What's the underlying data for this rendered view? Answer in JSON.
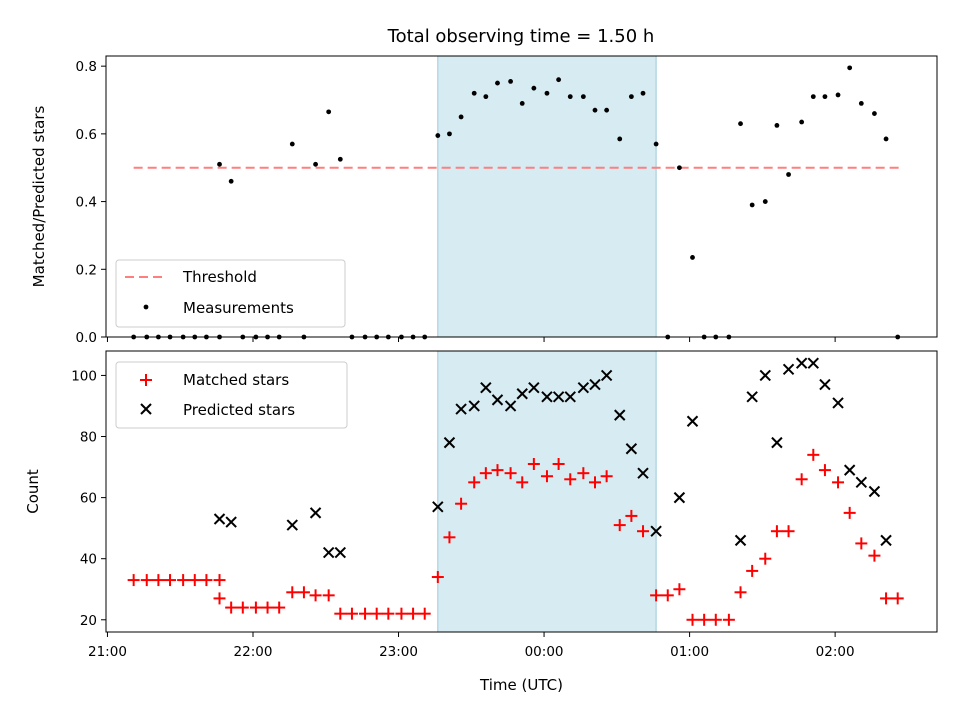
{
  "chart_data": {
    "title": "Total observing time = 1.50 h",
    "xlabel": "Time (UTC)",
    "x_tick_labels": [
      "21:00",
      "22:00",
      "23:00",
      "00:00",
      "01:00",
      "02:00"
    ],
    "x_tick_hours": [
      21,
      22,
      23,
      24,
      25,
      26
    ],
    "xlim": [
      20.99,
      26.7
    ],
    "highlight_span": {
      "from": 23.27,
      "to": 24.77,
      "color": "#add8e6"
    },
    "panels": [
      {
        "type": "scatter",
        "ylabel": "Matched/Predicted stars",
        "ylim": [
          0,
          0.83
        ],
        "y_ticks": [
          0.0,
          0.2,
          0.4,
          0.6,
          0.8
        ],
        "y_tick_labels": [
          "0.0",
          "0.2",
          "0.4",
          "0.6",
          "0.8"
        ],
        "legend_position": "lower-left",
        "threshold": {
          "name": "Threshold",
          "value": 0.5,
          "x_from": 21.18,
          "x_to": 26.45,
          "color": "#ff7f7f",
          "style": "dashed"
        },
        "series": [
          {
            "name": "Measurements",
            "marker": "dot",
            "color": "#000000",
            "points": [
              [
                21.18,
                0
              ],
              [
                21.27,
                0
              ],
              [
                21.35,
                0
              ],
              [
                21.43,
                0
              ],
              [
                21.52,
                0
              ],
              [
                21.6,
                0
              ],
              [
                21.68,
                0
              ],
              [
                21.77,
                0
              ],
              [
                21.77,
                0.51
              ],
              [
                21.85,
                0.46
              ],
              [
                21.93,
                0
              ],
              [
                22.02,
                0
              ],
              [
                22.1,
                0
              ],
              [
                22.18,
                0
              ],
              [
                22.27,
                0.57
              ],
              [
                22.35,
                0
              ],
              [
                22.43,
                0.51
              ],
              [
                22.52,
                0.665
              ],
              [
                22.6,
                0.525
              ],
              [
                22.68,
                0
              ],
              [
                22.77,
                0
              ],
              [
                22.85,
                0
              ],
              [
                22.93,
                0
              ],
              [
                23.02,
                0
              ],
              [
                23.1,
                0
              ],
              [
                23.18,
                0
              ],
              [
                23.27,
                0.595
              ],
              [
                23.35,
                0.6
              ],
              [
                23.43,
                0.65
              ],
              [
                23.52,
                0.72
              ],
              [
                23.6,
                0.71
              ],
              [
                23.68,
                0.75
              ],
              [
                23.77,
                0.755
              ],
              [
                23.85,
                0.69
              ],
              [
                23.93,
                0.735
              ],
              [
                24.02,
                0.72
              ],
              [
                24.1,
                0.76
              ],
              [
                24.18,
                0.71
              ],
              [
                24.27,
                0.71
              ],
              [
                24.35,
                0.67
              ],
              [
                24.43,
                0.67
              ],
              [
                24.52,
                0.585
              ],
              [
                24.6,
                0.71
              ],
              [
                24.68,
                0.72
              ],
              [
                24.77,
                0.57
              ],
              [
                24.85,
                0
              ],
              [
                24.93,
                0.5
              ],
              [
                25.02,
                0.235
              ],
              [
                25.1,
                0
              ],
              [
                25.18,
                0
              ],
              [
                25.27,
                0
              ],
              [
                25.35,
                0.63
              ],
              [
                25.43,
                0.39
              ],
              [
                25.52,
                0.4
              ],
              [
                25.6,
                0.625
              ],
              [
                25.68,
                0.48
              ],
              [
                25.77,
                0.635
              ],
              [
                25.85,
                0.71
              ],
              [
                25.93,
                0.71
              ],
              [
                26.02,
                0.715
              ],
              [
                26.1,
                0.795
              ],
              [
                26.18,
                0.69
              ],
              [
                26.27,
                0.66
              ],
              [
                26.35,
                0.585
              ],
              [
                26.43,
                0
              ]
            ]
          }
        ]
      },
      {
        "type": "scatter",
        "ylabel": "Count",
        "ylim": [
          16,
          108
        ],
        "y_ticks": [
          20,
          40,
          60,
          80,
          100
        ],
        "y_tick_labels": [
          "20",
          "40",
          "60",
          "80",
          "100"
        ],
        "legend_position": "upper-left",
        "series": [
          {
            "name": "Matched stars",
            "marker": "plus",
            "color": "#ff0000",
            "points": [
              [
                21.18,
                33
              ],
              [
                21.27,
                33
              ],
              [
                21.35,
                33
              ],
              [
                21.43,
                33
              ],
              [
                21.52,
                33
              ],
              [
                21.6,
                33
              ],
              [
                21.68,
                33
              ],
              [
                21.77,
                33
              ],
              [
                21.77,
                27
              ],
              [
                21.85,
                24
              ],
              [
                21.93,
                24
              ],
              [
                22.02,
                24
              ],
              [
                22.1,
                24
              ],
              [
                22.18,
                24
              ],
              [
                22.27,
                29
              ],
              [
                22.35,
                29
              ],
              [
                22.43,
                28
              ],
              [
                22.52,
                28
              ],
              [
                22.6,
                22
              ],
              [
                22.68,
                22
              ],
              [
                22.77,
                22
              ],
              [
                22.85,
                22
              ],
              [
                22.93,
                22
              ],
              [
                23.02,
                22
              ],
              [
                23.1,
                22
              ],
              [
                23.18,
                22
              ],
              [
                23.27,
                34
              ],
              [
                23.35,
                47
              ],
              [
                23.43,
                58
              ],
              [
                23.52,
                65
              ],
              [
                23.6,
                68
              ],
              [
                23.68,
                69
              ],
              [
                23.77,
                68
              ],
              [
                23.85,
                65
              ],
              [
                23.93,
                71
              ],
              [
                24.02,
                67
              ],
              [
                24.1,
                71
              ],
              [
                24.18,
                66
              ],
              [
                24.27,
                68
              ],
              [
                24.35,
                65
              ],
              [
                24.43,
                67
              ],
              [
                24.52,
                51
              ],
              [
                24.6,
                54
              ],
              [
                24.68,
                49
              ],
              [
                24.77,
                28
              ],
              [
                24.85,
                28
              ],
              [
                24.93,
                30
              ],
              [
                25.02,
                20
              ],
              [
                25.1,
                20
              ],
              [
                25.18,
                20
              ],
              [
                25.27,
                20
              ],
              [
                25.35,
                29
              ],
              [
                25.43,
                36
              ],
              [
                25.52,
                40
              ],
              [
                25.6,
                49
              ],
              [
                25.68,
                49
              ],
              [
                25.77,
                66
              ],
              [
                25.85,
                74
              ],
              [
                25.93,
                69
              ],
              [
                26.02,
                65
              ],
              [
                26.1,
                55
              ],
              [
                26.18,
                45
              ],
              [
                26.27,
                41
              ],
              [
                26.35,
                27
              ],
              [
                26.43,
                27
              ]
            ]
          },
          {
            "name": "Predicted stars",
            "marker": "x",
            "color": "#000000",
            "points": [
              [
                21.77,
                53
              ],
              [
                21.85,
                52
              ],
              [
                22.27,
                51
              ],
              [
                22.43,
                55
              ],
              [
                22.52,
                42
              ],
              [
                22.6,
                42
              ],
              [
                23.27,
                57
              ],
              [
                23.35,
                78
              ],
              [
                23.43,
                89
              ],
              [
                23.52,
                90
              ],
              [
                23.6,
                96
              ],
              [
                23.68,
                92
              ],
              [
                23.77,
                90
              ],
              [
                23.85,
                94
              ],
              [
                23.93,
                96
              ],
              [
                24.02,
                93
              ],
              [
                24.1,
                93
              ],
              [
                24.18,
                93
              ],
              [
                24.27,
                96
              ],
              [
                24.35,
                97
              ],
              [
                24.43,
                100
              ],
              [
                24.52,
                87
              ],
              [
                24.6,
                76
              ],
              [
                24.68,
                68
              ],
              [
                24.77,
                49
              ],
              [
                24.93,
                60
              ],
              [
                25.02,
                85
              ],
              [
                25.35,
                46
              ],
              [
                25.43,
                93
              ],
              [
                25.52,
                100
              ],
              [
                25.6,
                78
              ],
              [
                25.68,
                102
              ],
              [
                25.77,
                104
              ],
              [
                25.85,
                104
              ],
              [
                25.93,
                97
              ],
              [
                26.02,
                91
              ],
              [
                26.1,
                69
              ],
              [
                26.18,
                65
              ],
              [
                26.27,
                62
              ],
              [
                26.35,
                46
              ]
            ]
          }
        ]
      }
    ]
  }
}
